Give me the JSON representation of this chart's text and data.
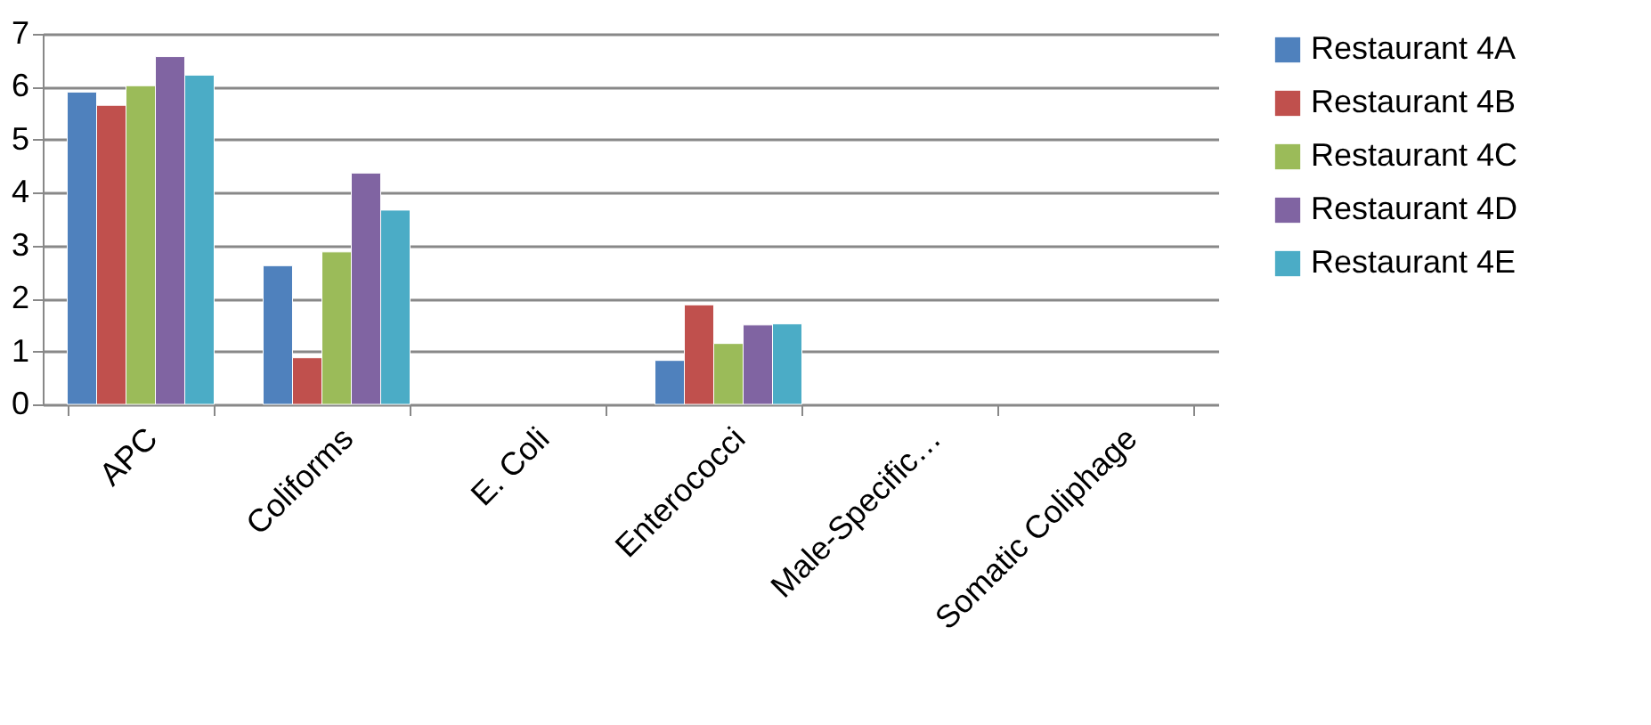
{
  "chart_data": {
    "type": "bar",
    "categories": [
      "APC",
      "Coliforms",
      "E. Coli",
      "Enterococci",
      "Male-Specific…",
      "Somatic Coliphage"
    ],
    "series": [
      {
        "name": "Restaurant 4A",
        "color": "#4f81bd",
        "values": [
          5.9,
          2.62,
          null,
          0.83,
          null,
          null
        ]
      },
      {
        "name": "Restaurant 4B",
        "color": "#c0504d",
        "values": [
          5.65,
          0.88,
          null,
          1.88,
          null,
          null
        ]
      },
      {
        "name": "Restaurant 4C",
        "color": "#9bbb59",
        "values": [
          6.02,
          2.88,
          null,
          1.15,
          null,
          null
        ]
      },
      {
        "name": "Restaurant 4D",
        "color": "#8064a2",
        "values": [
          6.57,
          4.37,
          null,
          1.5,
          null,
          null
        ]
      },
      {
        "name": "Restaurant 4E",
        "color": "#4bacc6",
        "values": [
          6.22,
          3.67,
          null,
          1.52,
          null,
          null
        ]
      }
    ],
    "ylim": [
      0,
      7
    ],
    "yticks": [
      0,
      1,
      2,
      3,
      4,
      5,
      6,
      7
    ],
    "grid": "y",
    "legend": "right"
  }
}
